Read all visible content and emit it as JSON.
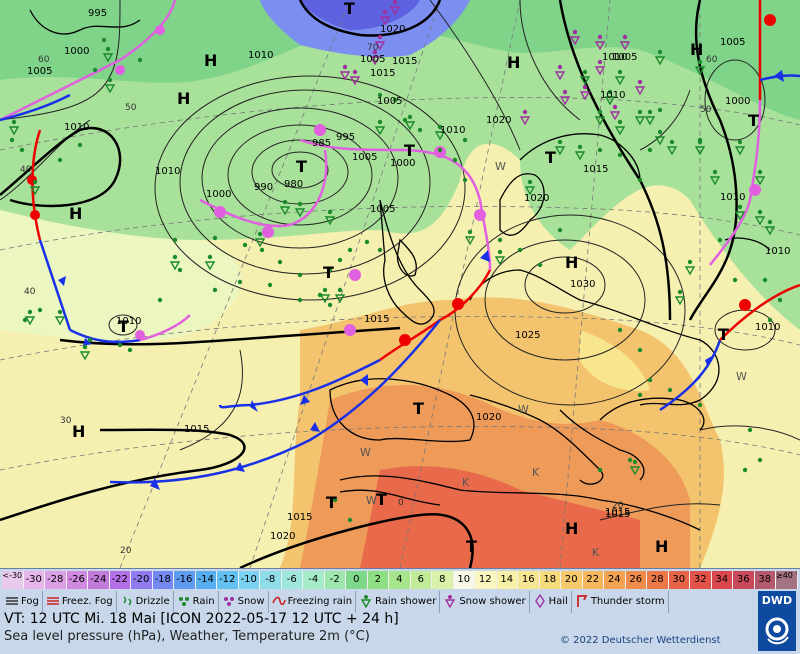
{
  "map": {
    "pressure_labels": [
      "995",
      "1000",
      "1005",
      "1010",
      "1005",
      "1010",
      "1015",
      "1020",
      "1015",
      "1005",
      "1010",
      "1010",
      "1000",
      "985",
      "995",
      "980",
      "990",
      "1000",
      "1005",
      "1005",
      "1010",
      "1010",
      "1020",
      "1015",
      "1020",
      "1015",
      "1000",
      "1005",
      "1005",
      "1010",
      "1010",
      "1015",
      "1030",
      "1025",
      "1010",
      "1015",
      "1020",
      "1020",
      "1015",
      "1010",
      "1015"
    ],
    "highs_lows": [
      "H",
      "H",
      "H",
      "H",
      "T",
      "T",
      "T",
      "T",
      "T",
      "H",
      "T",
      "H",
      "H",
      "T",
      "T",
      "T",
      "H",
      "T",
      "H",
      "T",
      "T"
    ],
    "wind_letters": [
      "W",
      "W",
      "W",
      "W",
      "W",
      "K",
      "K",
      "K"
    ],
    "temp_labels": [
      "60",
      "50",
      "40",
      "40",
      "30",
      "20",
      "70",
      "60",
      "50",
      "0",
      "20"
    ]
  },
  "legend": {
    "scale": [
      {
        "label": "<-30",
        "color": "#e9c8ee"
      },
      {
        "label": "-30",
        "color": "#e6b5ea"
      },
      {
        "label": "-28",
        "color": "#dca0e6"
      },
      {
        "label": "-26",
        "color": "#cf8ae0"
      },
      {
        "label": "-24",
        "color": "#c27ad8"
      },
      {
        "label": "-22",
        "color": "#b46ee6"
      },
      {
        "label": "-20",
        "color": "#8f7af0"
      },
      {
        "label": "-18",
        "color": "#7388f0"
      },
      {
        "label": "-16",
        "color": "#5f9aee"
      },
      {
        "label": "-14",
        "color": "#56aef0"
      },
      {
        "label": "-12",
        "color": "#63c1f2"
      },
      {
        "label": "-10",
        "color": "#7ad2f0"
      },
      {
        "label": "-8",
        "color": "#8fdde8"
      },
      {
        "label": "-6",
        "color": "#9fe6dc"
      },
      {
        "label": "-4",
        "color": "#a6ebc8"
      },
      {
        "label": "-2",
        "color": "#9ee6ae"
      },
      {
        "label": "0",
        "color": "#7ed88a"
      },
      {
        "label": "2",
        "color": "#8ede84"
      },
      {
        "label": "4",
        "color": "#a6e58c"
      },
      {
        "label": "6",
        "color": "#c1eb98"
      },
      {
        "label": "8",
        "color": "#d9f1a8"
      },
      {
        "label": "10",
        "color": "#f8f8e6"
      },
      {
        "label": "12",
        "color": "#fbf7c0"
      },
      {
        "label": "14",
        "color": "#f8f0a6"
      },
      {
        "label": "16",
        "color": "#f6e694"
      },
      {
        "label": "18",
        "color": "#f6da7e"
      },
      {
        "label": "20",
        "color": "#f5c96c"
      },
      {
        "label": "22",
        "color": "#f5b65e"
      },
      {
        "label": "24",
        "color": "#f3a252"
      },
      {
        "label": "26",
        "color": "#ef8c4c"
      },
      {
        "label": "28",
        "color": "#ec7848"
      },
      {
        "label": "30",
        "color": "#e86448"
      },
      {
        "label": "32",
        "color": "#e2544a"
      },
      {
        "label": "34",
        "color": "#d9484e"
      },
      {
        "label": "36",
        "color": "#c84a5a"
      },
      {
        "label": "38",
        "color": "#b45a6e"
      },
      {
        "label": "≥40 °C",
        "color": "#a47282"
      }
    ],
    "symbols": [
      {
        "icon": "fog-icon",
        "label": "Fog"
      },
      {
        "icon": "freezing-fog-icon",
        "label": "Freez. Fog"
      },
      {
        "icon": "drizzle-icon",
        "label": "Drizzle"
      },
      {
        "icon": "rain-icon",
        "label": "Rain"
      },
      {
        "icon": "snow-icon",
        "label": "Snow"
      },
      {
        "icon": "freezing-rain-icon",
        "label": "Freezing rain"
      },
      {
        "icon": "rain-shower-icon",
        "label": "Rain shower"
      },
      {
        "icon": "snow-shower-icon",
        "label": "Snow shower"
      },
      {
        "icon": "hail-icon",
        "label": "Hail"
      },
      {
        "icon": "thunderstorm-icon",
        "label": "Thunder storm"
      }
    ],
    "vt": "VT: 12 UTC Mi.  18 Mai [ICON 2022-05-17  12 UTC + 24 h]",
    "description": "Sea level pressure (hPa), Weather, Temperature 2m (°C)",
    "copyright": "© 2022 Deutscher Wetterdienst",
    "logo": "DWD"
  }
}
